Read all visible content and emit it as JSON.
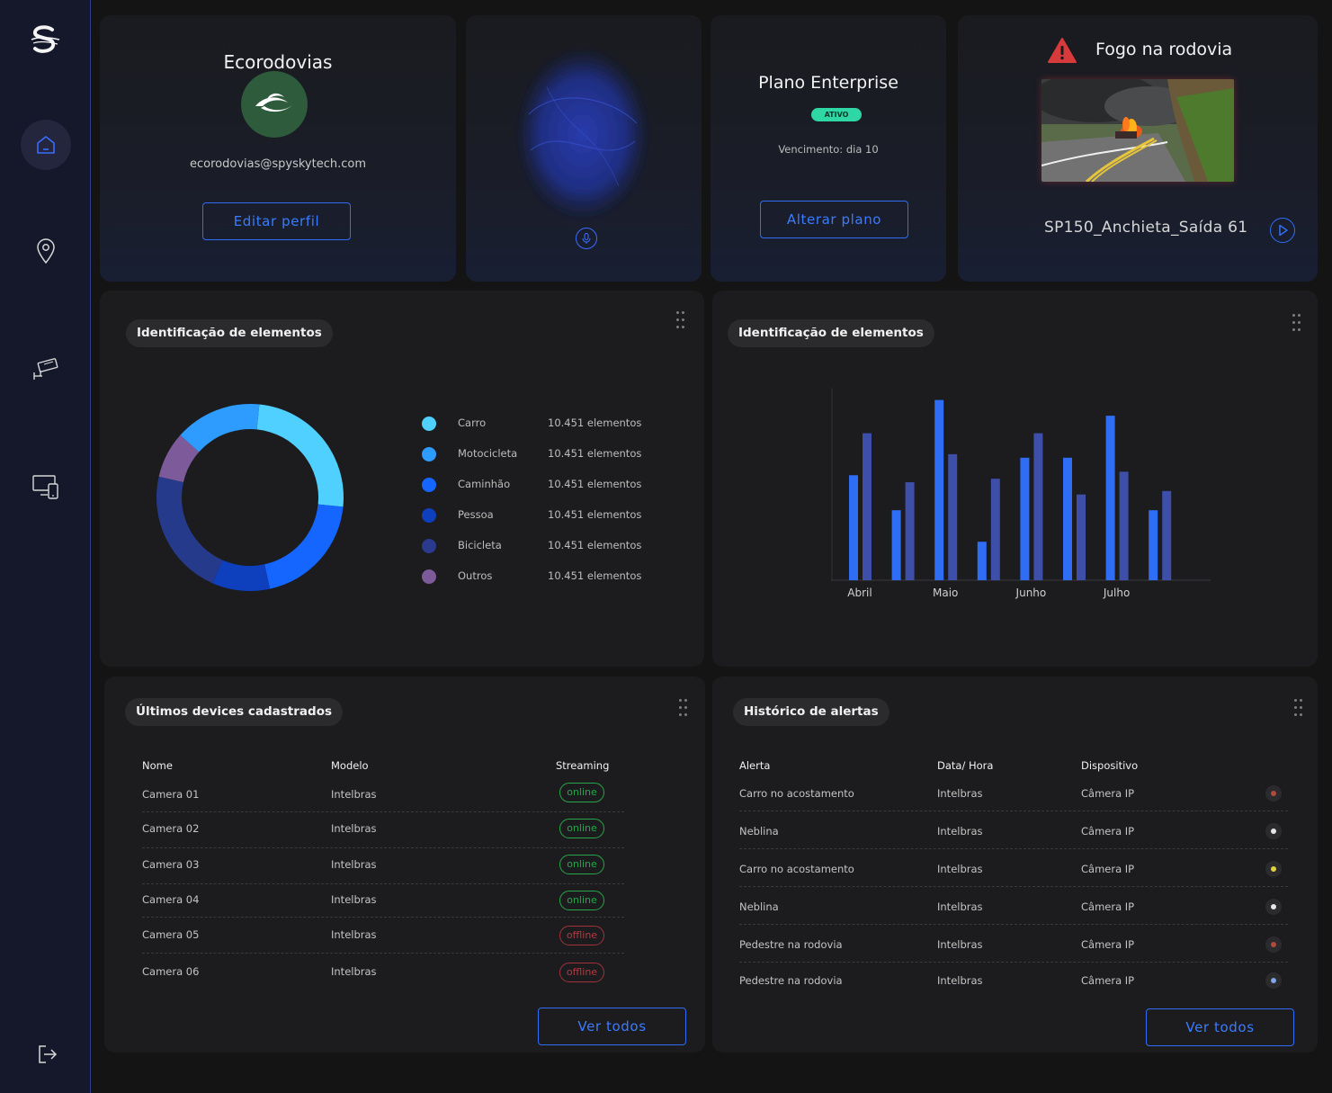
{
  "sidebar": {
    "logo_icon": "spysky-logo-icon",
    "items": [
      {
        "name": "home",
        "icon": "home-icon",
        "active": true
      },
      {
        "name": "location",
        "icon": "map-pin-icon",
        "active": false
      },
      {
        "name": "cameras",
        "icon": "cctv-camera-icon",
        "active": false
      },
      {
        "name": "devices",
        "icon": "devices-icon",
        "active": false
      }
    ],
    "logout_icon": "logout-icon"
  },
  "profile": {
    "name": "Ecorodovias",
    "email": "ecorodovias@spyskytech.com",
    "edit_label": "Editar perfil"
  },
  "voice": {
    "mic_icon": "microphone-icon"
  },
  "plan": {
    "name": "Plano Enterprise",
    "status": "ATIVO",
    "due": "Vencimento: dia 10",
    "change_label": "Alterar plano"
  },
  "alert": {
    "title": "Fogo na rodovia",
    "camera": "SP150_Anchieta_Saída 61",
    "warning_icon": "warning-icon",
    "play_icon": "play-icon"
  },
  "donut_card": {
    "title": "Identificação de elementos",
    "legend": [
      {
        "label": "Carro",
        "value": "10.451 elementos",
        "color": "#4fd0ff"
      },
      {
        "label": "Motocicleta",
        "value": "10.451 elementos",
        "color": "#2e9bff"
      },
      {
        "label": "Caminhão",
        "value": "10.451 elementos",
        "color": "#1466ff"
      },
      {
        "label": "Pessoa",
        "value": "10.451 elementos",
        "color": "#0e3fbd"
      },
      {
        "label": "Bicicleta",
        "value": "10.451 elementos",
        "color": "#2a3a8e"
      },
      {
        "label": "Outros",
        "value": "10.451 elementos",
        "color": "#7d5a9a"
      }
    ]
  },
  "bar_card": {
    "title": "Identificação de elementos"
  },
  "chart_data": [
    {
      "type": "pie",
      "labels": [
        "Carro",
        "Motocicleta",
        "Caminhão",
        "Pessoa",
        "Bicicleta",
        "Outros"
      ],
      "values": [
        25,
        20,
        10,
        22,
        8,
        15
      ],
      "colors": [
        "#4fd0ff",
        "#1466ff",
        "#0e3fbd",
        "#263a8c",
        "#7d5a9a",
        "#2e9bff"
      ],
      "title": "Identificação de elementos"
    },
    {
      "type": "bar",
      "categories": [
        "Abril",
        "",
        "Maio",
        "",
        "Junho",
        "",
        "Julho",
        ""
      ],
      "series": [
        {
          "values": [
            60,
            40,
            103,
            22,
            70,
            70,
            94,
            40
          ],
          "color": "#2f6df5"
        },
        {
          "values": [
            84,
            56,
            72,
            58,
            84,
            49,
            62,
            51
          ],
          "color": "#3d4fa8"
        }
      ],
      "ylim": [
        0,
        110
      ],
      "grid": false,
      "title": "Identificação de elementos"
    }
  ],
  "devices": {
    "title": "Últimos devices cadastrados",
    "headers": [
      "Nome",
      "Modelo",
      "Streaming"
    ],
    "rows": [
      {
        "name": "Camera 01",
        "model": "Intelbras",
        "status": "online"
      },
      {
        "name": "Camera 02",
        "model": "Intelbras",
        "status": "online"
      },
      {
        "name": "Camera 03",
        "model": "Intelbras",
        "status": "online"
      },
      {
        "name": "Camera 04",
        "model": "Intelbras",
        "status": "online"
      },
      {
        "name": "Camera 05",
        "model": "Intelbras",
        "status": "offline"
      },
      {
        "name": "Camera 06",
        "model": "Intelbras",
        "status": "offline"
      }
    ],
    "see_all": "Ver todos"
  },
  "alerts": {
    "title": "Histórico de alertas",
    "headers": [
      "Alerta",
      "Data/ Hora",
      "Dispositivo"
    ],
    "rows": [
      {
        "alert": "Carro no acostamento",
        "datetime": "Intelbras",
        "device": "Câmera IP",
        "dot": "#b04a3c"
      },
      {
        "alert": "Neblina",
        "datetime": "Intelbras",
        "device": "Câmera IP",
        "dot": "#e6e6e6"
      },
      {
        "alert": "Carro no acostamento",
        "datetime": "Intelbras",
        "device": "Câmera IP",
        "dot": "#e2d23a"
      },
      {
        "alert": "Neblina",
        "datetime": "Intelbras",
        "device": "Câmera IP",
        "dot": "#e6e6e6"
      },
      {
        "alert": "Pedestre na rodovia",
        "datetime": "Intelbras",
        "device": "Câmera IP",
        "dot": "#b04a3c"
      },
      {
        "alert": "Pedestre na rodovia",
        "datetime": "Intelbras",
        "device": "Câmera IP",
        "dot": "#7fa6e6"
      }
    ],
    "see_all": "Ver todos"
  }
}
